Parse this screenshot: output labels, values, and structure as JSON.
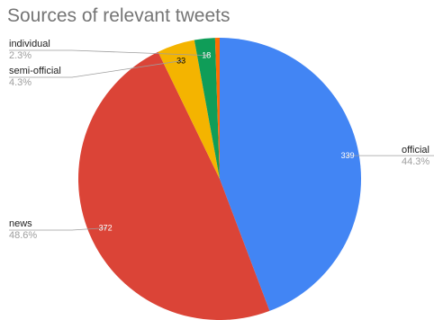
{
  "chart_data": {
    "type": "pie",
    "title": "Sources of relevant tweets",
    "slices": [
      {
        "label": "official",
        "value": 339,
        "percent_label": "44.3%",
        "color": "#4285f4",
        "value_color": "#ffffff"
      },
      {
        "label": "news",
        "value": 372,
        "percent_label": "48.6%",
        "color": "#db4437",
        "value_color": "#ffffff"
      },
      {
        "label": "semi-official",
        "value": 33,
        "percent_label": "4.3%",
        "color": "#f4b400",
        "value_color": "#000000"
      },
      {
        "label": "individual",
        "value": 18,
        "percent_label": "2.3%",
        "color": "#0f9d58",
        "value_color": "#ffffff"
      },
      {
        "label": "",
        "value": 4,
        "percent_label": "",
        "color": "#ff6d00",
        "value_color": "#ffffff",
        "show_value": false
      }
    ],
    "legend": "none",
    "start_angle": "12 o'clock",
    "direction": "clockwise"
  }
}
